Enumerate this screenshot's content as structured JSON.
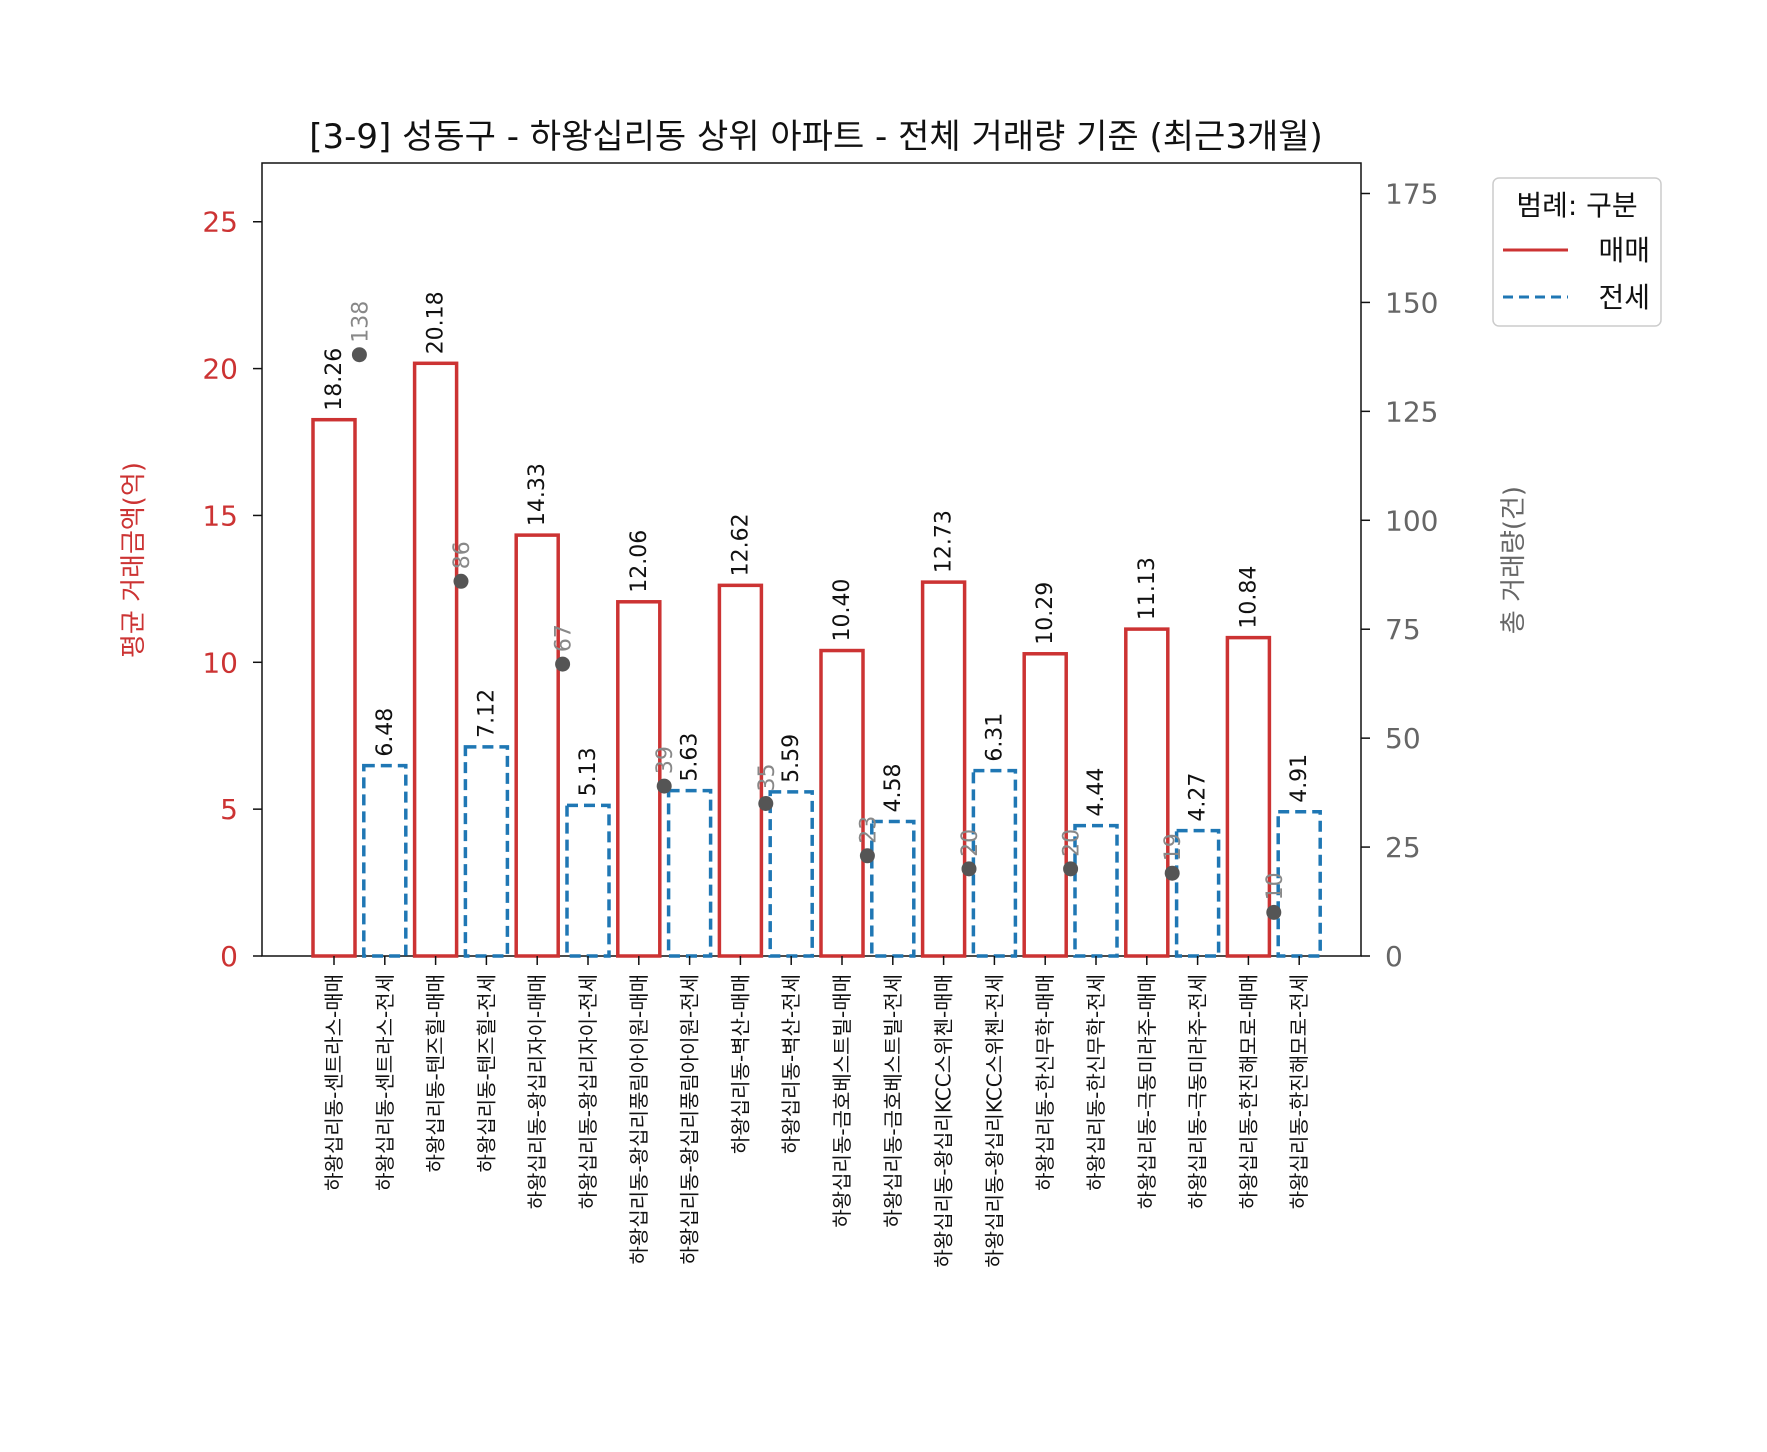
{
  "chart_data": {
    "type": "bar",
    "title": "[3-9] 성동구 - 하왕십리동 상위 아파트 - 전체 거래량 기준 (최근3개월)",
    "ylabel_left": "평균 거래금액(억)",
    "ylabel_right": "총 거래량(건)",
    "ylim_left": [
      0,
      27
    ],
    "ylim_right": [
      0,
      182
    ],
    "yticks_left": [
      "0",
      "5",
      "10",
      "15",
      "20",
      "25"
    ],
    "yticks_right": [
      "0",
      "25",
      "50",
      "75",
      "100",
      "125",
      "150",
      "175"
    ],
    "legend": {
      "title": "범례: 구분",
      "position": "top-right outside",
      "items": [
        {
          "label": "매매",
          "color": "#cc3333",
          "style": "solid"
        },
        {
          "label": "전세",
          "color": "#1f77b4",
          "style": "dashed"
        }
      ]
    },
    "categories": [
      "하왕십리동-센트라스-매매",
      "하왕십리동-센트라스-전세",
      "하왕십리동-텐즈힐-매매",
      "하왕십리동-텐즈힐-전세",
      "하왕십리동-왕십리자이-매매",
      "하왕십리동-왕십리자이-전세",
      "하왕십리동-왕십리풍림아이원-매매",
      "하왕십리동-왕십리풍림아이원-전세",
      "하왕십리동-벽산-매매",
      "하왕십리동-벽산-전세",
      "하왕십리동-금호베스트빌-매매",
      "하왕십리동-금호베스트빌-전세",
      "하왕십리동-왕십리KCC스위첸-매매",
      "하왕십리동-왕십리KCC스위첸-전세",
      "하왕십리동-한신무학-매매",
      "하왕십리동-한신무학-전세",
      "하왕십리동-극동미라주-매매",
      "하왕십리동-극동미라주-전세",
      "하왕십리동-한진해모로-매매",
      "하왕십리동-한진해모로-전세"
    ],
    "bar_kinds": [
      "매매",
      "전세",
      "매매",
      "전세",
      "매매",
      "전세",
      "매매",
      "전세",
      "매매",
      "전세",
      "매매",
      "전세",
      "매매",
      "전세",
      "매매",
      "전세",
      "매매",
      "전세",
      "매매",
      "전세"
    ],
    "values": [
      18.26,
      6.48,
      20.18,
      7.12,
      14.33,
      5.13,
      12.06,
      5.63,
      12.62,
      5.59,
      10.4,
      4.58,
      12.73,
      6.31,
      10.29,
      4.44,
      11.13,
      4.27,
      10.84,
      4.91
    ],
    "value_labels": [
      "18.26",
      "6.48",
      "20.18",
      "7.12",
      "14.33",
      "5.13",
      "12.06",
      "5.63",
      "12.62",
      "5.59",
      "10.40",
      "4.58",
      "12.73",
      "6.31",
      "10.29",
      "4.44",
      "11.13",
      "4.27",
      "10.84",
      "4.91"
    ],
    "counts": [
      {
        "complex": "센트라스",
        "value": 138,
        "label": "138"
      },
      {
        "complex": "텐즈힐",
        "value": 86,
        "label": "86"
      },
      {
        "complex": "왕십리자이",
        "value": 67,
        "label": "67"
      },
      {
        "complex": "왕십리풍림아이원",
        "value": 39,
        "label": "39"
      },
      {
        "complex": "벽산",
        "value": 35,
        "label": "35"
      },
      {
        "complex": "금호베스트빌",
        "value": 23,
        "label": "23"
      },
      {
        "complex": "왕십리KCC스위첸",
        "value": 20,
        "label": "20"
      },
      {
        "complex": "한신무학",
        "value": 20,
        "label": "20"
      },
      {
        "complex": "극동미라주",
        "value": 19,
        "label": "19"
      },
      {
        "complex": "한진해모로",
        "value": 10,
        "label": "10"
      }
    ],
    "colors": {
      "sale": "#cc3333",
      "lease": "#1f77b4",
      "count": "#555555"
    }
  }
}
